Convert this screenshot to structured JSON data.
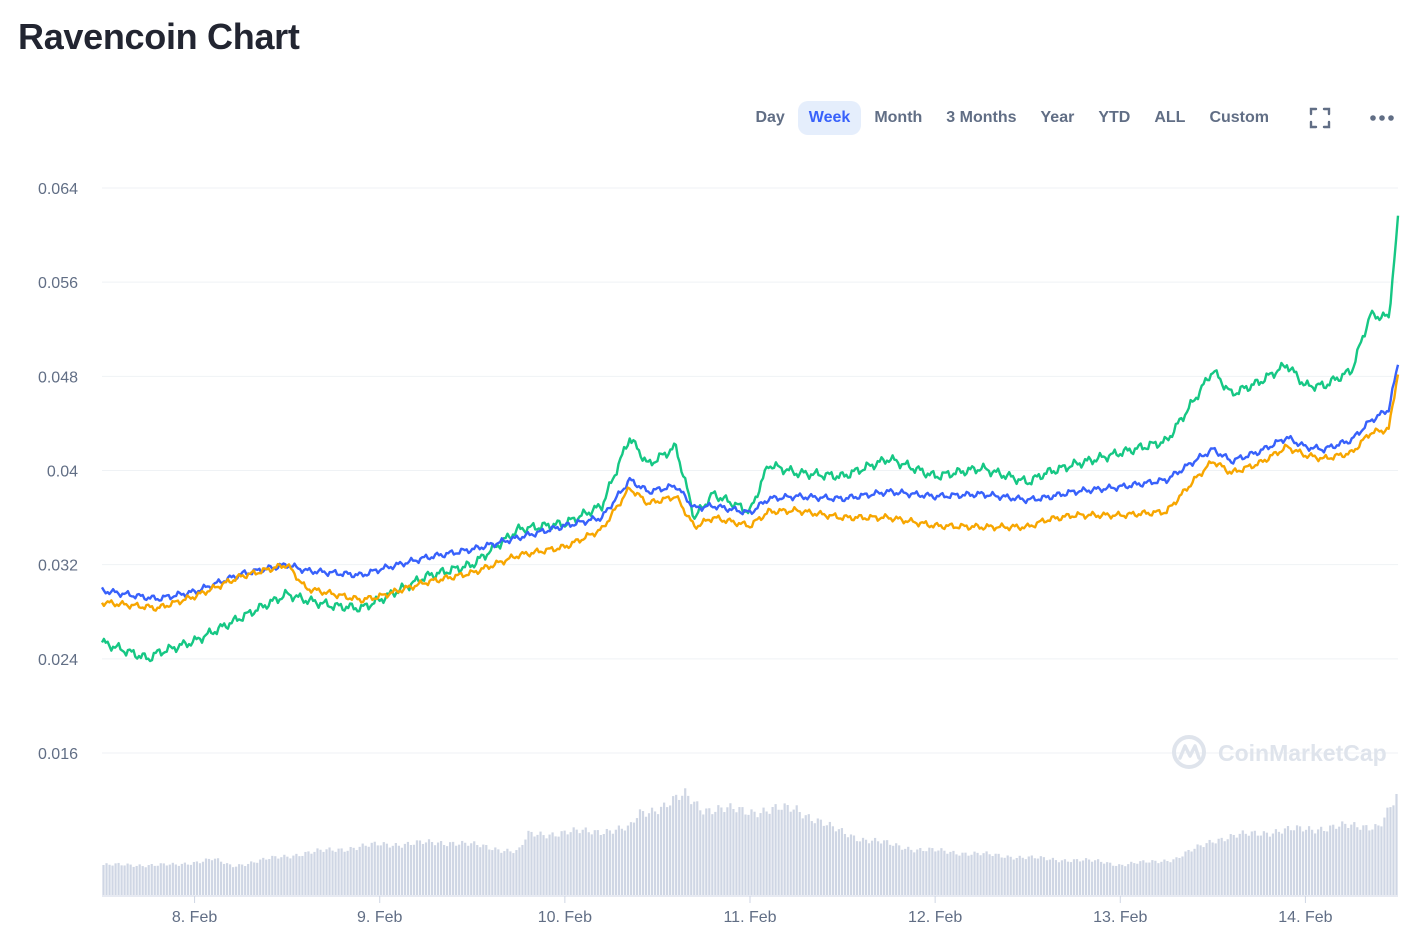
{
  "header": {
    "title": "Ravencoin Chart"
  },
  "range_selector": {
    "buttons": [
      "Day",
      "Week",
      "Month",
      "3 Months",
      "Year",
      "YTD",
      "ALL",
      "Custom"
    ],
    "active": "Week",
    "fullscreen_icon": "fullscreen-icon",
    "more_icon": "more-icon"
  },
  "watermark": {
    "text": "CoinMarketCap",
    "icon": "coinmarketcap-logo-icon"
  },
  "colors": {
    "green": "#16c784",
    "blue": "#3861fb",
    "orange": "#f7a600",
    "volume": "#cfd6e4",
    "grid": "#eff2f5",
    "axis_text": "#616e85",
    "active_bg": "#e5eefc"
  },
  "chart_data": {
    "type": "line",
    "title": "Ravencoin Chart",
    "x_labels": [
      "8. Feb",
      "9. Feb",
      "10. Feb",
      "11. Feb",
      "12. Feb",
      "13. Feb",
      "14. Feb"
    ],
    "x_range": [
      7.5,
      14.5
    ],
    "ylim": [
      0.012,
      0.066
    ],
    "y_ticks": [
      "0.064",
      "0.056",
      "0.048",
      "0.04",
      "0.032",
      "0.024",
      "0.016"
    ],
    "y_tick_values": [
      0.064,
      0.056,
      0.048,
      0.04,
      0.032,
      0.024,
      0.016
    ],
    "grid": true,
    "x": [
      7.5,
      7.75,
      7.8,
      8.0,
      8.25,
      8.5,
      8.6,
      8.75,
      8.9,
      9.0,
      9.25,
      9.5,
      9.75,
      10.0,
      10.2,
      10.35,
      10.45,
      10.6,
      10.7,
      10.8,
      11.0,
      11.1,
      11.25,
      11.5,
      11.75,
      12.0,
      12.25,
      12.5,
      12.6,
      12.75,
      13.0,
      13.25,
      13.4,
      13.5,
      13.6,
      13.75,
      13.9,
      14.0,
      14.1,
      14.25,
      14.35,
      14.45,
      14.5
    ],
    "series": [
      {
        "color": "green",
        "values": [
          0.0254,
          0.024,
          0.0245,
          0.0255,
          0.0275,
          0.0295,
          0.029,
          0.0285,
          0.0283,
          0.029,
          0.031,
          0.032,
          0.035,
          0.0355,
          0.037,
          0.0428,
          0.0405,
          0.042,
          0.036,
          0.038,
          0.0365,
          0.0405,
          0.0398,
          0.0395,
          0.041,
          0.0395,
          0.0402,
          0.039,
          0.0398,
          0.0405,
          0.0415,
          0.0425,
          0.046,
          0.0485,
          0.0465,
          0.0475,
          0.049,
          0.0472,
          0.0472,
          0.0485,
          0.0532,
          0.053,
          0.0612
        ]
      },
      {
        "color": "blue",
        "values": [
          0.0298,
          0.0292,
          0.0291,
          0.0297,
          0.0312,
          0.032,
          0.0315,
          0.0313,
          0.0311,
          0.0316,
          0.0326,
          0.0333,
          0.0343,
          0.0353,
          0.036,
          0.0392,
          0.0382,
          0.0387,
          0.0368,
          0.037,
          0.0364,
          0.0376,
          0.0378,
          0.0376,
          0.0382,
          0.0378,
          0.038,
          0.0375,
          0.0377,
          0.0382,
          0.0386,
          0.0392,
          0.0408,
          0.0418,
          0.0408,
          0.0416,
          0.0428,
          0.042,
          0.0418,
          0.0426,
          0.0442,
          0.0452,
          0.049
        ]
      },
      {
        "color": "orange",
        "values": [
          0.0288,
          0.0284,
          0.0283,
          0.0293,
          0.031,
          0.032,
          0.03,
          0.0295,
          0.029,
          0.0293,
          0.0305,
          0.0313,
          0.0328,
          0.0335,
          0.035,
          0.0385,
          0.0372,
          0.0378,
          0.0352,
          0.036,
          0.0353,
          0.0365,
          0.0366,
          0.036,
          0.036,
          0.0353,
          0.0352,
          0.0352,
          0.0358,
          0.0362,
          0.0362,
          0.0365,
          0.0392,
          0.0408,
          0.0398,
          0.0406,
          0.042,
          0.0413,
          0.041,
          0.0415,
          0.0432,
          0.0435,
          0.0483
        ]
      }
    ],
    "volume": {
      "x": [
        7.5,
        7.9,
        8.1,
        8.2,
        8.4,
        8.6,
        9.0,
        9.4,
        9.75,
        9.8,
        10.0,
        10.35,
        10.4,
        10.55,
        10.65,
        10.75,
        11.0,
        11.25,
        11.45,
        11.6,
        11.9,
        12.25,
        12.6,
        12.9,
        13.0,
        13.3,
        13.5,
        13.75,
        14.0,
        14.2,
        14.4,
        14.5
      ],
      "values": [
        0.25,
        0.25,
        0.3,
        0.24,
        0.3,
        0.35,
        0.42,
        0.44,
        0.36,
        0.5,
        0.52,
        0.55,
        0.68,
        0.75,
        0.83,
        0.72,
        0.7,
        0.72,
        0.55,
        0.47,
        0.38,
        0.34,
        0.3,
        0.28,
        0.25,
        0.3,
        0.46,
        0.52,
        0.55,
        0.57,
        0.58,
        0.82
      ]
    }
  }
}
